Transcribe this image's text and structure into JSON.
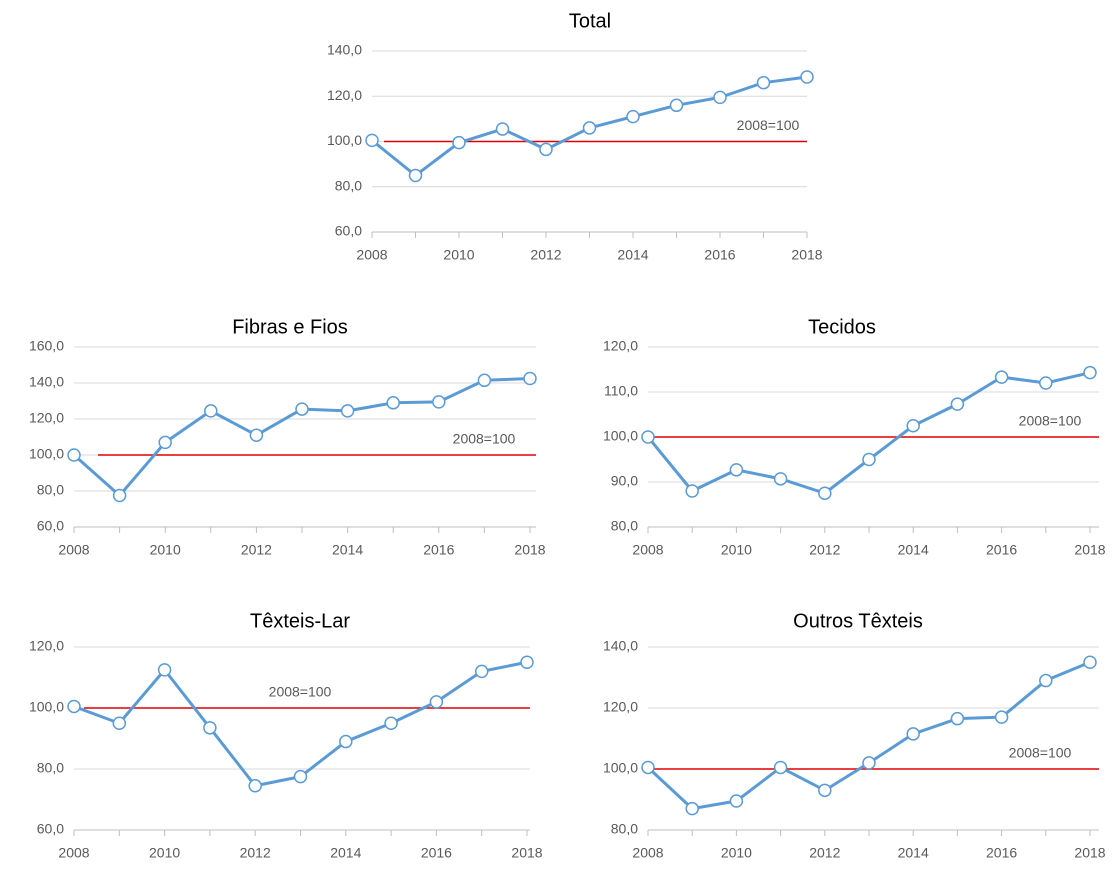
{
  "chart_data": [
    {
      "type": "line",
      "title": "Total",
      "x": [
        2008,
        2009,
        2010,
        2011,
        2012,
        2013,
        2014,
        2015,
        2016,
        2017,
        2018
      ],
      "series": [
        {
          "name": null,
          "color": "#5b9bd5",
          "values": [
            100.5,
            85,
            99.5,
            105.5,
            96.5,
            106,
            111,
            116,
            119.5,
            126,
            128.5
          ]
        }
      ],
      "xlim": [
        2008,
        2018
      ],
      "xticks": [
        2008,
        2010,
        2012,
        2014,
        2016,
        2018
      ],
      "ylim": [
        60,
        140
      ],
      "yticks": [
        {
          "value": 60,
          "label": "60,0"
        },
        {
          "value": 80,
          "label": "80,0"
        },
        {
          "value": 100,
          "label": "100,0"
        },
        {
          "value": 120,
          "label": "120,0"
        },
        {
          "value": 140,
          "label": "140,0"
        }
      ],
      "grid": true,
      "reference_line": {
        "value": 100,
        "label": "2008=100",
        "color": "#e00000"
      }
    },
    {
      "type": "line",
      "title": "Fibras e Fios",
      "x": [
        2008,
        2009,
        2010,
        2011,
        2012,
        2013,
        2014,
        2015,
        2016,
        2017,
        2018
      ],
      "series": [
        {
          "name": null,
          "color": "#5b9bd5",
          "values": [
            100,
            77.5,
            107,
            124.5,
            111,
            125.5,
            124.5,
            129,
            129.5,
            141.5,
            142.5
          ]
        }
      ],
      "xlim": [
        2008,
        2018
      ],
      "xticks": [
        2008,
        2010,
        2012,
        2014,
        2016,
        2018
      ],
      "ylim": [
        60,
        160
      ],
      "yticks": [
        {
          "value": 60,
          "label": "60,0"
        },
        {
          "value": 80,
          "label": "80,0"
        },
        {
          "value": 100,
          "label": "100,0"
        },
        {
          "value": 120,
          "label": "120,0"
        },
        {
          "value": 140,
          "label": "140,0"
        },
        {
          "value": 160,
          "label": "160,0"
        }
      ],
      "grid": true,
      "reference_line": {
        "value": 100,
        "label": "2008=100",
        "color": "#e00000"
      }
    },
    {
      "type": "line",
      "title": "Tecidos",
      "x": [
        2008,
        2009,
        2010,
        2011,
        2012,
        2013,
        2014,
        2015,
        2016,
        2017,
        2018
      ],
      "series": [
        {
          "name": null,
          "color": "#5b9bd5",
          "values": [
            100,
            88,
            92.7,
            90.7,
            87.5,
            95,
            102.5,
            107.3,
            113.3,
            112,
            114.3
          ]
        }
      ],
      "xlim": [
        2008,
        2018
      ],
      "xticks": [
        2008,
        2010,
        2012,
        2014,
        2016,
        2018
      ],
      "ylim": [
        80,
        120
      ],
      "yticks": [
        {
          "value": 80,
          "label": "80,0"
        },
        {
          "value": 90,
          "label": "90,0"
        },
        {
          "value": 100,
          "label": "100,0"
        },
        {
          "value": 110,
          "label": "110,0"
        },
        {
          "value": 120,
          "label": "120,0"
        }
      ],
      "grid": true,
      "reference_line": {
        "value": 100,
        "label": "2008=100",
        "color": "#e00000"
      }
    },
    {
      "type": "line",
      "title": "Têxteis-Lar",
      "x": [
        2008,
        2009,
        2010,
        2011,
        2012,
        2013,
        2014,
        2015,
        2016,
        2017,
        2018
      ],
      "series": [
        {
          "name": null,
          "color": "#5b9bd5",
          "values": [
            100.5,
            95,
            112.5,
            93.5,
            74.5,
            77.5,
            89,
            95,
            102,
            112,
            115
          ]
        }
      ],
      "xlim": [
        2008,
        2018
      ],
      "xticks": [
        2008,
        2010,
        2012,
        2014,
        2016,
        2018
      ],
      "ylim": [
        60,
        120
      ],
      "yticks": [
        {
          "value": 60,
          "label": "60,0"
        },
        {
          "value": 80,
          "label": "80,0"
        },
        {
          "value": 100,
          "label": "100,0"
        },
        {
          "value": 120,
          "label": "120,0"
        }
      ],
      "grid": true,
      "reference_line": {
        "value": 100,
        "label": "2008=100",
        "color": "#e00000"
      }
    },
    {
      "type": "line",
      "title": "Outros Têxteis",
      "x": [
        2008,
        2009,
        2010,
        2011,
        2012,
        2013,
        2014,
        2015,
        2016,
        2017,
        2018
      ],
      "series": [
        {
          "name": null,
          "color": "#5b9bd5",
          "values": [
            100.5,
            87,
            89.5,
            100.5,
            93,
            102,
            111.5,
            116.5,
            117,
            129,
            135
          ]
        }
      ],
      "xlim": [
        2008,
        2018
      ],
      "xticks": [
        2008,
        2010,
        2012,
        2014,
        2016,
        2018
      ],
      "ylim": [
        80,
        140
      ],
      "yticks": [
        {
          "value": 80,
          "label": "80,0"
        },
        {
          "value": 100,
          "label": "100,0"
        },
        {
          "value": 120,
          "label": "120,0"
        },
        {
          "value": 140,
          "label": "140,0"
        }
      ],
      "grid": true,
      "reference_line": {
        "value": 100,
        "label": "2008=100",
        "color": "#e00000"
      }
    }
  ]
}
